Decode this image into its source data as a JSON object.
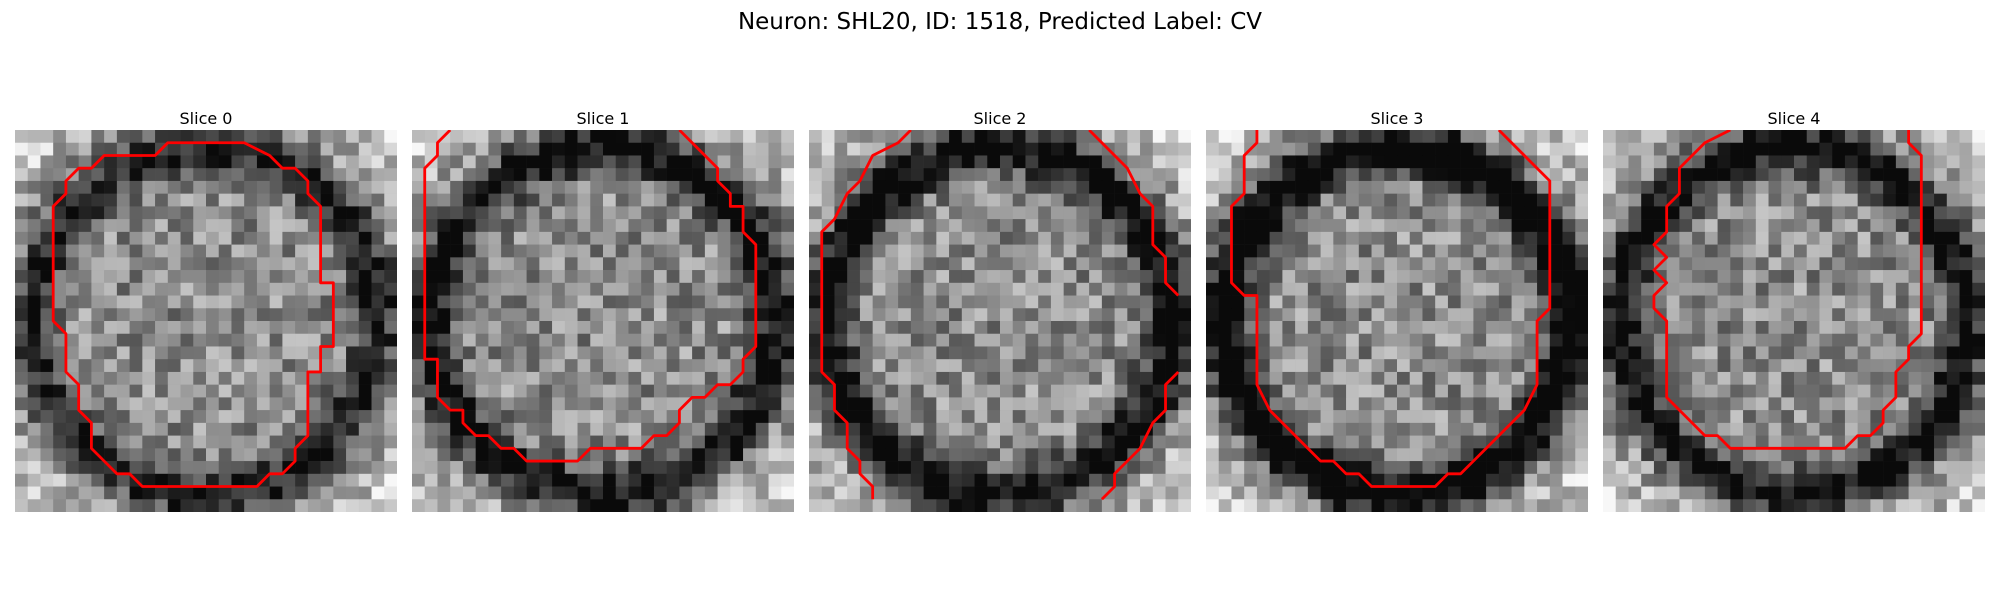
{
  "figure": {
    "title": "Neuron: SHL20, ID: 1518, Predicted Label: CV"
  },
  "panels": [
    {
      "label": "Slice 0",
      "ring_seed": 11,
      "contour_color": "#ff0000"
    },
    {
      "label": "Slice 1",
      "ring_seed": 23,
      "contour_color": "#ff0000"
    },
    {
      "label": "Slice 2",
      "ring_seed": 37,
      "contour_color": "#ff0000"
    },
    {
      "label": "Slice 3",
      "ring_seed": 41,
      "contour_color": "#ff0000"
    },
    {
      "label": "Slice 4",
      "ring_seed": 53,
      "contour_color": "#ff0000"
    }
  ]
}
